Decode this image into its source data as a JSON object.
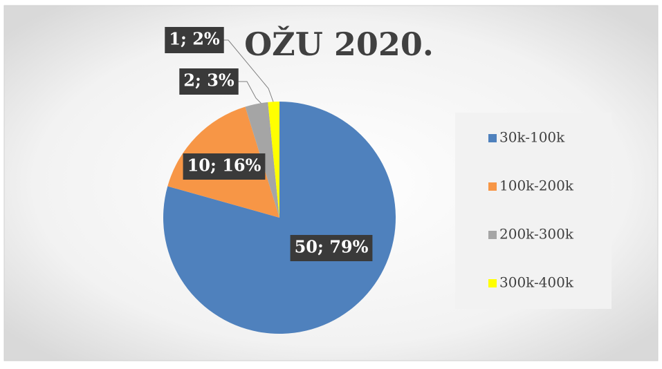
{
  "chart_data": {
    "type": "pie",
    "title": "OŽU 2020.",
    "categories": [
      "30k-100k",
      "100k-200k",
      "200k-300k",
      "300k-400k"
    ],
    "values": [
      50,
      10,
      2,
      1
    ],
    "value_labels": [
      "50; 79%",
      "10; 16%",
      "2; 3%",
      "1; 2%"
    ],
    "colors": [
      "#4f81bd",
      "#f79646",
      "#a5a5a5",
      "#ffff00"
    ],
    "legend": "right"
  }
}
